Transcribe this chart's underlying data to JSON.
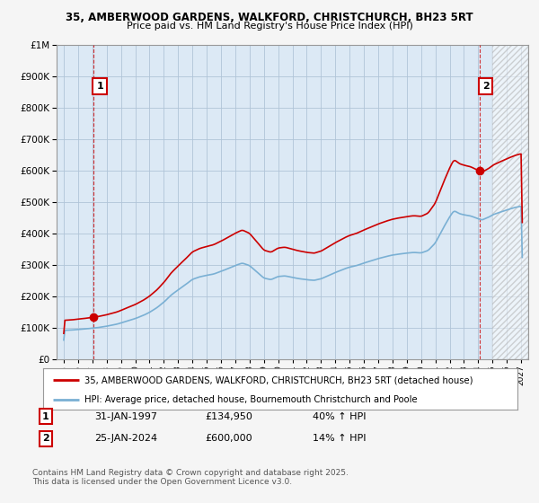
{
  "title1": "35, AMBERWOOD GARDENS, WALKFORD, CHRISTCHURCH, BH23 5RT",
  "title2": "Price paid vs. HM Land Registry's House Price Index (HPI)",
  "legend_line1": "35, AMBERWOOD GARDENS, WALKFORD, CHRISTCHURCH, BH23 5RT (detached house)",
  "legend_line2": "HPI: Average price, detached house, Bournemouth Christchurch and Poole",
  "annotation1_label": "1",
  "annotation1_date": "31-JAN-1997",
  "annotation1_price": "£134,950",
  "annotation1_hpi": "40% ↑ HPI",
  "annotation2_label": "2",
  "annotation2_date": "25-JAN-2024",
  "annotation2_price": "£600,000",
  "annotation2_hpi": "14% ↑ HPI",
  "footer": "Contains HM Land Registry data © Crown copyright and database right 2025.\nThis data is licensed under the Open Government Licence v3.0.",
  "price_color": "#cc0000",
  "hpi_color": "#7ab0d4",
  "plot_bg_color": "#dce9f5",
  "background_color": "#f0f0f0",
  "grid_color": "#b0c4d8",
  "future_hatch_color": "#c0c8d0",
  "ylim": [
    0,
    1000000
  ],
  "xlim_start": 1994.5,
  "xlim_end": 2027.5,
  "future_start": 2025.0,
  "sale1_year": 1997.083,
  "sale1_price": 134950,
  "sale2_year": 2024.075,
  "sale2_price": 600000
}
